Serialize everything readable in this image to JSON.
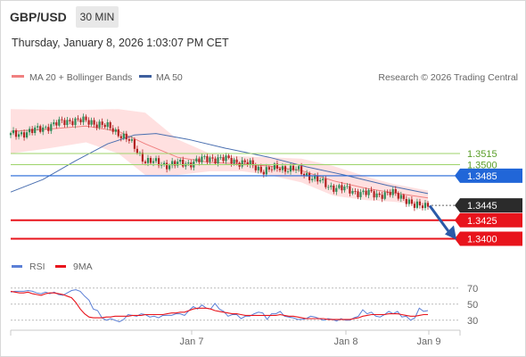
{
  "header": {
    "symbol": "GBP/USD",
    "timeframe": "30 MIN",
    "datetime": "Thursday, January 8, 2026 1:03:07 PM CET"
  },
  "legend": {
    "ma20_label": "MA 20 + Bollinger Bands",
    "ma50_label": "MA 50",
    "credit": "Research © 2026 Trading Central",
    "rsi_label": "RSI",
    "ma9_label": "9MA"
  },
  "colors": {
    "up": "#2e8b57",
    "down": "#b22222",
    "ma20": "#f08080",
    "band": "#ffd6d6",
    "ma50": "#4a6fb0",
    "support": "#e8141c",
    "pivot": "#2166d8",
    "resistance": "#9ed36a",
    "current": "#2b2b2b",
    "arrow": "#2a5aa8",
    "rsi": "#5b7fd6",
    "rsi_ma": "#e8141c"
  },
  "chart_data": [
    {
      "type": "candlestick",
      "title": "GBP/USD",
      "timeframe": "30 MIN",
      "ylim": [
        1.3385,
        1.358
      ],
      "x_ticks": [
        "Jan 7",
        "Jan 8",
        "Jan 9"
      ],
      "close_path": [
        {
          "bar": 0,
          "close": 1.354
        },
        {
          "bar": 8,
          "close": 1.3545
        },
        {
          "bar": 14,
          "close": 1.3552
        },
        {
          "bar": 22,
          "close": 1.356
        },
        {
          "bar": 30,
          "close": 1.3558
        },
        {
          "bar": 38,
          "close": 1.3548
        },
        {
          "bar": 44,
          "close": 1.3532
        },
        {
          "bar": 50,
          "close": 1.3505
        },
        {
          "bar": 58,
          "close": 1.35
        },
        {
          "bar": 66,
          "close": 1.3502
        },
        {
          "bar": 74,
          "close": 1.3509
        },
        {
          "bar": 82,
          "close": 1.3506
        },
        {
          "bar": 88,
          "close": 1.3501
        },
        {
          "bar": 94,
          "close": 1.3492
        },
        {
          "bar": 100,
          "close": 1.3496
        },
        {
          "bar": 106,
          "close": 1.3493
        },
        {
          "bar": 112,
          "close": 1.3483
        },
        {
          "bar": 118,
          "close": 1.3471
        },
        {
          "bar": 124,
          "close": 1.3467
        },
        {
          "bar": 130,
          "close": 1.3462
        },
        {
          "bar": 136,
          "close": 1.346
        },
        {
          "bar": 142,
          "close": 1.3461
        },
        {
          "bar": 146,
          "close": 1.3456
        },
        {
          "bar": 150,
          "close": 1.3443
        },
        {
          "bar": 155,
          "close": 1.3447
        }
      ],
      "indicators": [
        {
          "name": "MA 20 + Bollinger Bands",
          "points": [
            [
              0,
              1.3545
            ],
            [
              14,
              1.3548
            ],
            [
              28,
              1.3552
            ],
            [
              40,
              1.3545
            ],
            [
              50,
              1.3528
            ],
            [
              62,
              1.351
            ],
            [
              74,
              1.3503
            ],
            [
              86,
              1.3501
            ],
            [
              96,
              1.3498
            ],
            [
              108,
              1.3492
            ],
            [
              120,
              1.3478
            ],
            [
              132,
              1.3468
            ],
            [
              142,
              1.3462
            ],
            [
              155,
              1.3455
            ]
          ],
          "band_width": [
            0.003,
            0.0026,
            0.0022,
            0.003,
            0.0042,
            0.0024,
            0.0012,
            0.001,
            0.0012,
            0.0016,
            0.002,
            0.0016,
            0.0012,
            0.001
          ]
        },
        {
          "name": "MA 50",
          "points": [
            [
              0,
              1.3463
            ],
            [
              12,
              1.348
            ],
            [
              24,
              1.3505
            ],
            [
              36,
              1.3528
            ],
            [
              46,
              1.354
            ],
            [
              54,
              1.3542
            ],
            [
              66,
              1.3534
            ],
            [
              80,
              1.3522
            ],
            [
              96,
              1.351
            ],
            [
              110,
              1.3497
            ],
            [
              124,
              1.3486
            ],
            [
              140,
              1.3472
            ],
            [
              155,
              1.3461
            ]
          ]
        }
      ],
      "levels": [
        {
          "label": "1.3515",
          "value": 1.3515,
          "kind": "resistance"
        },
        {
          "label": "1.3500",
          "value": 1.35,
          "kind": "resistance"
        },
        {
          "label": "1.3485",
          "value": 1.3485,
          "kind": "pivot"
        },
        {
          "label": "1.3445",
          "value": 1.3445,
          "kind": "current"
        },
        {
          "label": "1.3425",
          "value": 1.3425,
          "kind": "support"
        },
        {
          "label": "1.3400",
          "value": 1.34,
          "kind": "support"
        }
      ]
    },
    {
      "type": "line",
      "title": "",
      "ylim": [
        22,
        82
      ],
      "y_ticks": [
        "70",
        "50",
        "30"
      ],
      "series": [
        {
          "name": "RSI",
          "values": [
            65,
            66,
            66,
            66,
            67,
            66,
            64,
            63,
            65,
            63,
            65,
            62,
            61,
            64,
            67,
            68,
            66,
            60,
            55,
            44,
            42,
            33,
            30,
            32,
            30,
            28,
            31,
            37,
            36,
            35,
            38,
            37,
            34,
            35,
            33,
            36,
            36,
            36,
            38,
            38,
            36,
            42,
            47,
            44,
            49,
            45,
            44,
            51,
            44,
            41,
            35,
            37,
            37,
            32,
            35,
            35,
            38,
            40,
            39,
            31,
            38,
            38,
            41,
            35,
            34,
            33,
            31,
            31,
            32,
            35,
            34,
            32,
            30,
            32,
            31,
            29,
            32,
            30,
            30,
            33,
            35,
            43,
            38,
            40,
            35,
            34,
            37,
            41,
            38,
            41,
            34,
            35,
            30,
            33,
            45,
            41,
            42
          ]
        },
        {
          "name": "9MA",
          "values": [
            66,
            65,
            64,
            64,
            65,
            63,
            62,
            61,
            63,
            64,
            64,
            63,
            62,
            60,
            58,
            52,
            44,
            38,
            34,
            33,
            33,
            33,
            34,
            34,
            35,
            35,
            35,
            35,
            36,
            36,
            36,
            37,
            37,
            37,
            37,
            37,
            38,
            39,
            39,
            40,
            40,
            42,
            44,
            45,
            45,
            45,
            44,
            42,
            41,
            40,
            39,
            38,
            38,
            37,
            36,
            36,
            36,
            36,
            36,
            36,
            36,
            36,
            37,
            36,
            35,
            35,
            34,
            33,
            32,
            32,
            32,
            32,
            32,
            31,
            31,
            31,
            31,
            31,
            31,
            32,
            33,
            35,
            36,
            37,
            37,
            37,
            37,
            38,
            38,
            38,
            37,
            36,
            35,
            35,
            36,
            37,
            37
          ]
        }
      ]
    }
  ]
}
